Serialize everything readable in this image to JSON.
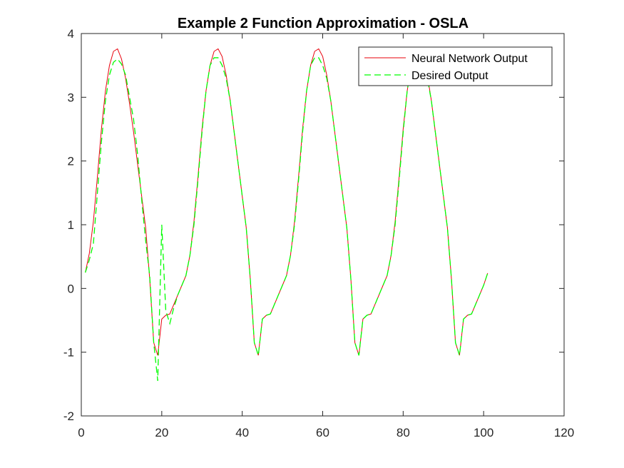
{
  "chart_data": {
    "type": "line",
    "title": "Example 2 Function Approximation - OSLA",
    "xlabel": "",
    "ylabel": "",
    "xlim": [
      0,
      120
    ],
    "ylim": [
      -2,
      4
    ],
    "xticks": [
      0,
      20,
      40,
      60,
      80,
      100,
      120
    ],
    "yticks": [
      -2,
      -1,
      0,
      1,
      2,
      3,
      4
    ],
    "grid": false,
    "legend_position": "top-right",
    "series": [
      {
        "name": "Neural Network Output",
        "color": "#e8000b",
        "style": "solid",
        "x": [
          1,
          2,
          3,
          4,
          5,
          6,
          7,
          8,
          9,
          10,
          11,
          12,
          13,
          14,
          15,
          16,
          17,
          18,
          19,
          20,
          21,
          22,
          23,
          24,
          25,
          26,
          27,
          28,
          29,
          30,
          31,
          32,
          33,
          34,
          35,
          36,
          37,
          38,
          39,
          40,
          41,
          42,
          43,
          44,
          45,
          46,
          47,
          48,
          49,
          50,
          51,
          52,
          53,
          54,
          55,
          56,
          57,
          58,
          59,
          60,
          61,
          62,
          63,
          64,
          65,
          66,
          67,
          68,
          69,
          70,
          71,
          72,
          73,
          74,
          75,
          76,
          77,
          78,
          79,
          80,
          81,
          82,
          83,
          84,
          85,
          86,
          87,
          88,
          89,
          90,
          91,
          92,
          93,
          94,
          95,
          96,
          97,
          98,
          99,
          100,
          101
        ],
        "y": [
          0.25,
          0.55,
          1.05,
          1.75,
          2.5,
          3.1,
          3.5,
          3.72,
          3.76,
          3.6,
          3.3,
          2.9,
          2.45,
          1.95,
          1.45,
          0.95,
          0.15,
          -0.85,
          -1.05,
          -0.48,
          -0.42,
          -0.4,
          -0.25,
          -0.1,
          0.05,
          0.2,
          0.52,
          1.05,
          1.75,
          2.5,
          3.1,
          3.5,
          3.72,
          3.76,
          3.64,
          3.35,
          2.95,
          2.45,
          1.95,
          1.45,
          0.95,
          0.15,
          -0.85,
          -1.05,
          -0.48,
          -0.42,
          -0.4,
          -0.25,
          -0.1,
          0.05,
          0.2,
          0.52,
          1.05,
          1.75,
          2.5,
          3.1,
          3.5,
          3.72,
          3.76,
          3.64,
          3.35,
          2.95,
          2.45,
          1.95,
          1.45,
          0.95,
          0.15,
          -0.85,
          -1.05,
          -0.48,
          -0.42,
          -0.4,
          -0.25,
          -0.1,
          0.05,
          0.2,
          0.52,
          1.05,
          1.75,
          2.5,
          3.1,
          3.5,
          3.72,
          3.76,
          3.64,
          3.35,
          2.95,
          2.45,
          1.95,
          1.45,
          0.95,
          0.15,
          -0.85,
          -1.05,
          -0.48,
          -0.42,
          -0.4,
          -0.25,
          -0.1,
          0.05,
          0.24
        ]
      },
      {
        "name": "Desired Output",
        "color": "#00ff00",
        "style": "dashed",
        "x": [
          1,
          2,
          3,
          4,
          5,
          6,
          7,
          8,
          9,
          10,
          11,
          12,
          13,
          14,
          15,
          16,
          17,
          18,
          19,
          20,
          21,
          22,
          23,
          24,
          25,
          26,
          27,
          28,
          29,
          30,
          31,
          32,
          33,
          34,
          35,
          36,
          37,
          38,
          39,
          40,
          41,
          42,
          43,
          44,
          45,
          46,
          47,
          48,
          49,
          50,
          51,
          52,
          53,
          54,
          55,
          56,
          57,
          58,
          59,
          60,
          61,
          62,
          63,
          64,
          65,
          66,
          67,
          68,
          69,
          70,
          71,
          72,
          73,
          74,
          75,
          76,
          77,
          78,
          79,
          80,
          81,
          82,
          83,
          84,
          85,
          86,
          87,
          88,
          89,
          90,
          91,
          92,
          93,
          94,
          95,
          96,
          97,
          98,
          99,
          100,
          101
        ],
        "y": [
          0.25,
          0.45,
          0.7,
          1.5,
          2.3,
          2.95,
          3.35,
          3.55,
          3.6,
          3.52,
          3.35,
          3.0,
          2.65,
          2.1,
          1.4,
          0.75,
          0.2,
          -0.85,
          -1.45,
          1.0,
          -0.35,
          -0.55,
          -0.3,
          -0.1,
          0.05,
          0.2,
          0.52,
          1.0,
          1.7,
          2.45,
          3.1,
          3.5,
          3.62,
          3.62,
          3.5,
          3.3,
          2.95,
          2.45,
          1.95,
          1.45,
          0.95,
          0.15,
          -0.85,
          -1.05,
          -0.48,
          -0.42,
          -0.4,
          -0.25,
          -0.1,
          0.05,
          0.2,
          0.52,
          1.0,
          1.7,
          2.45,
          3.1,
          3.5,
          3.62,
          3.62,
          3.5,
          3.3,
          2.95,
          2.45,
          1.95,
          1.45,
          0.95,
          0.15,
          -0.85,
          -1.05,
          -0.48,
          -0.42,
          -0.4,
          -0.25,
          -0.1,
          0.05,
          0.2,
          0.52,
          1.0,
          1.7,
          2.45,
          3.1,
          3.5,
          3.62,
          3.62,
          3.5,
          3.3,
          2.95,
          2.45,
          1.95,
          1.45,
          0.95,
          0.15,
          -0.85,
          -1.05,
          -0.48,
          -0.42,
          -0.4,
          -0.25,
          -0.1,
          0.05,
          0.24
        ]
      }
    ]
  }
}
